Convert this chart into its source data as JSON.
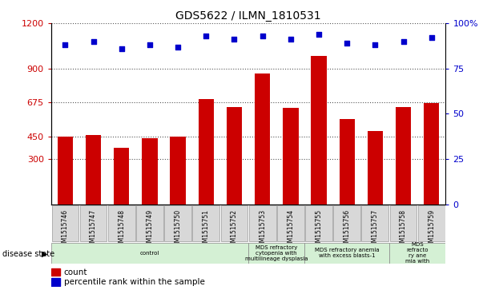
{
  "title": "GDS5622 / ILMN_1810531",
  "samples": [
    "GSM1515746",
    "GSM1515747",
    "GSM1515748",
    "GSM1515749",
    "GSM1515750",
    "GSM1515751",
    "GSM1515752",
    "GSM1515753",
    "GSM1515754",
    "GSM1515755",
    "GSM1515756",
    "GSM1515757",
    "GSM1515758",
    "GSM1515759"
  ],
  "counts": [
    447,
    460,
    375,
    437,
    449,
    697,
    645,
    865,
    638,
    985,
    565,
    485,
    645,
    672
  ],
  "percentiles": [
    88,
    90,
    86,
    88,
    87,
    93,
    91,
    93,
    91,
    94,
    89,
    88,
    90,
    92
  ],
  "disease_groups": [
    {
      "label": "control",
      "start": 0,
      "end": 7,
      "color": "#d4f0d4"
    },
    {
      "label": "MDS refractory\ncytopenia with\nmultilineage dysplasia",
      "start": 7,
      "end": 9,
      "color": "#d4f0d4"
    },
    {
      "label": "MDS refractory anemia\nwith excess blasts-1",
      "start": 9,
      "end": 12,
      "color": "#d4f0d4"
    },
    {
      "label": "MDS\nrefracto\nry ane\nmia with",
      "start": 12,
      "end": 14,
      "color": "#d4f0d4"
    }
  ],
  "bar_color": "#cc0000",
  "dot_color": "#0000cc",
  "ylim_left": [
    0,
    1200
  ],
  "yticks_left": [
    300,
    450,
    675,
    900,
    1200
  ],
  "ylim_right": [
    0,
    100
  ],
  "yticks_right": [
    0,
    25,
    50,
    75,
    100
  ],
  "grid_color": "#555555",
  "plot_bg": "#ffffff",
  "label_box_color": "#d8d8d8",
  "legend_count_label": "count",
  "legend_percentile_label": "percentile rank within the sample",
  "disease_state_label": "disease state"
}
